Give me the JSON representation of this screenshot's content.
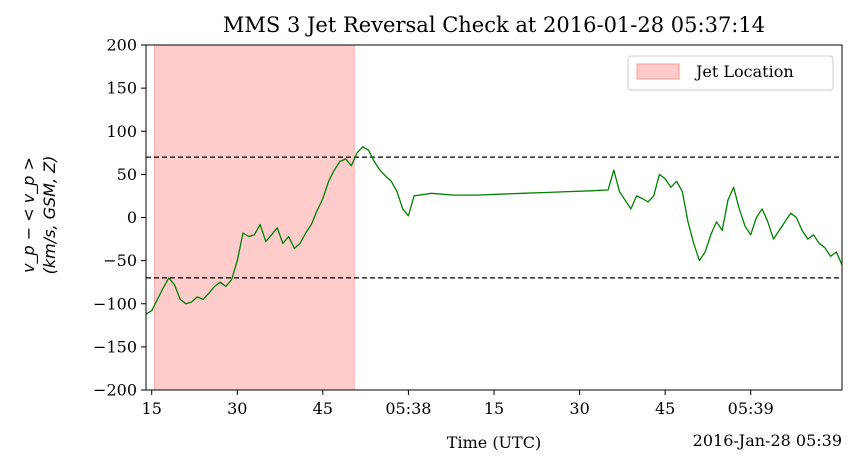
{
  "chart_data": {
    "type": "line",
    "title": "MMS 3 Jet Reversal Check at 2016-01-28 05:37:14",
    "xlabel": "Time (UTC)",
    "x_offset_label": "2016-Jan-28 05:39",
    "ylabel_line1": "v_p − < v_p >",
    "ylabel_line2": "(km/s, GSM, Z)",
    "ylim": [
      -200,
      200
    ],
    "yticks": [
      -200,
      -150,
      -100,
      -50,
      0,
      50,
      100,
      150,
      200
    ],
    "xlim": [
      "05:37:14",
      "05:39:16"
    ],
    "xticks": [
      {
        "t": "05:37:15",
        "label": "15"
      },
      {
        "t": "05:37:30",
        "label": "30"
      },
      {
        "t": "05:37:45",
        "label": "45"
      },
      {
        "t": "05:38:00",
        "label": "05:38"
      },
      {
        "t": "05:38:15",
        "label": "15"
      },
      {
        "t": "05:38:30",
        "label": "30"
      },
      {
        "t": "05:38:45",
        "label": "45"
      },
      {
        "t": "05:39:00",
        "label": "05:39"
      }
    ],
    "thresholds": [
      70,
      -70
    ],
    "jet_span": {
      "start": "05:37:15.5",
      "end": "05:37:50.5",
      "label": "Jet Location",
      "color": "#ff9999"
    },
    "legend": {
      "position": "top-right",
      "entries": [
        "Jet Location"
      ]
    },
    "grid": false,
    "series": [
      {
        "color": "#008000",
        "x": [
          "05:37:14",
          "05:37:15",
          "05:37:16",
          "05:37:17",
          "05:37:18",
          "05:37:19",
          "05:37:20",
          "05:37:21",
          "05:37:22",
          "05:37:23",
          "05:37:24",
          "05:37:25",
          "05:37:26",
          "05:37:27",
          "05:37:28",
          "05:37:29",
          "05:37:30",
          "05:37:31",
          "05:37:32",
          "05:37:33",
          "05:37:34",
          "05:37:35",
          "05:37:36",
          "05:37:37",
          "05:37:38",
          "05:37:39",
          "05:37:40",
          "05:37:41",
          "05:37:42",
          "05:37:43",
          "05:37:44",
          "05:37:45",
          "05:37:46",
          "05:37:47",
          "05:37:48",
          "05:37:49",
          "05:37:50",
          "05:37:51",
          "05:37:52",
          "05:37:53",
          "05:37:54",
          "05:37:55",
          "05:37:56",
          "05:37:57",
          "05:37:58",
          "05:37:59",
          "05:38:00",
          "05:38:01",
          "05:38:04",
          "05:38:08",
          "05:38:12",
          "05:38:16",
          "05:38:20",
          "05:38:24",
          "05:38:28",
          "05:38:32",
          "05:38:35",
          "05:38:36",
          "05:38:37",
          "05:38:38",
          "05:38:39",
          "05:38:40",
          "05:38:41",
          "05:38:42",
          "05:38:43",
          "05:38:44",
          "05:38:45",
          "05:38:46",
          "05:38:47",
          "05:38:48",
          "05:38:49",
          "05:38:50",
          "05:38:51",
          "05:38:52",
          "05:38:53",
          "05:38:54",
          "05:38:55",
          "05:38:56",
          "05:38:57",
          "05:38:58",
          "05:38:59",
          "05:39:00",
          "05:39:01",
          "05:39:02",
          "05:39:03",
          "05:39:04",
          "05:39:05",
          "05:39:06",
          "05:39:07",
          "05:39:08",
          "05:39:09",
          "05:39:10",
          "05:39:11",
          "05:39:12",
          "05:39:13",
          "05:39:14",
          "05:39:15",
          "05:39:16"
        ],
        "y": [
          -112,
          -108,
          -95,
          -82,
          -70,
          -78,
          -95,
          -100,
          -98,
          -92,
          -95,
          -88,
          -80,
          -75,
          -80,
          -72,
          -50,
          -18,
          -22,
          -20,
          -8,
          -28,
          -20,
          -12,
          -30,
          -22,
          -36,
          -30,
          -18,
          -8,
          8,
          22,
          42,
          55,
          65,
          68,
          60,
          75,
          82,
          78,
          65,
          55,
          48,
          42,
          30,
          10,
          2,
          25,
          28,
          26,
          26,
          27,
          28,
          29,
          30,
          31,
          32,
          55,
          30,
          20,
          10,
          25,
          22,
          18,
          25,
          50,
          45,
          35,
          42,
          30,
          -5,
          -30,
          -50,
          -40,
          -20,
          -5,
          -15,
          20,
          35,
          10,
          -10,
          -20,
          0,
          10,
          -5,
          -25,
          -15,
          -5,
          5,
          0,
          -15,
          -25,
          -20,
          -30,
          -35,
          -45,
          -40,
          -55
        ]
      }
    ]
  }
}
